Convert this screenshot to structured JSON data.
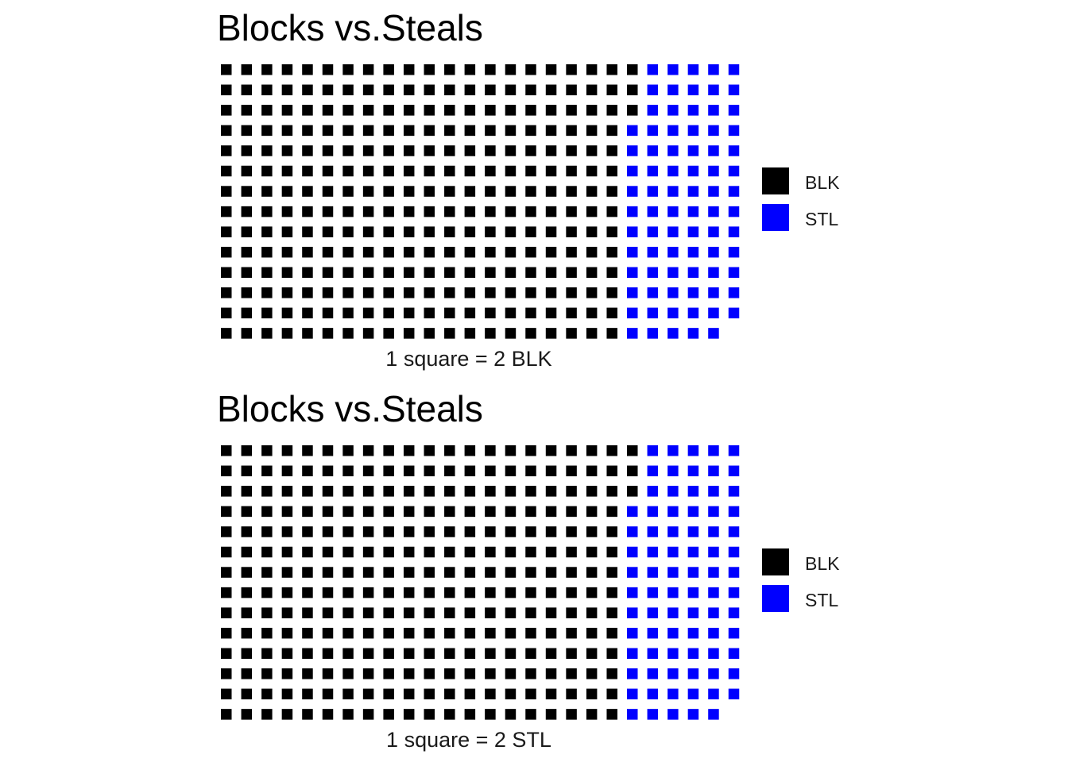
{
  "chart_data": [
    {
      "type": "waffle",
      "title": "Blocks vs.Steals",
      "caption": "1 square = 2 BLK",
      "rows": 14,
      "fill_order": "column-major, top to bottom",
      "colors": {
        "BLK": "#000000",
        "STL": "#0000FF"
      },
      "legend": {
        "position": "right",
        "entries": [
          {
            "label": "BLK",
            "color": "#000000"
          },
          {
            "label": "STL",
            "color": "#0000FF"
          }
        ]
      },
      "series": [
        {
          "category": "BLK",
          "squares": 283
        },
        {
          "category": "STL",
          "squares": 80
        }
      ]
    },
    {
      "type": "waffle",
      "title": "Blocks vs.Steals",
      "caption": "1 square = 2 STL",
      "rows": 14,
      "fill_order": "column-major, top to bottom",
      "colors": {
        "BLK": "#000000",
        "STL": "#0000FF"
      },
      "legend": {
        "position": "right",
        "entries": [
          {
            "label": "BLK",
            "color": "#000000"
          },
          {
            "label": "STL",
            "color": "#0000FF"
          }
        ]
      },
      "series": [
        {
          "category": "BLK",
          "squares": 283
        },
        {
          "category": "STL",
          "squares": 80
        }
      ]
    }
  ]
}
